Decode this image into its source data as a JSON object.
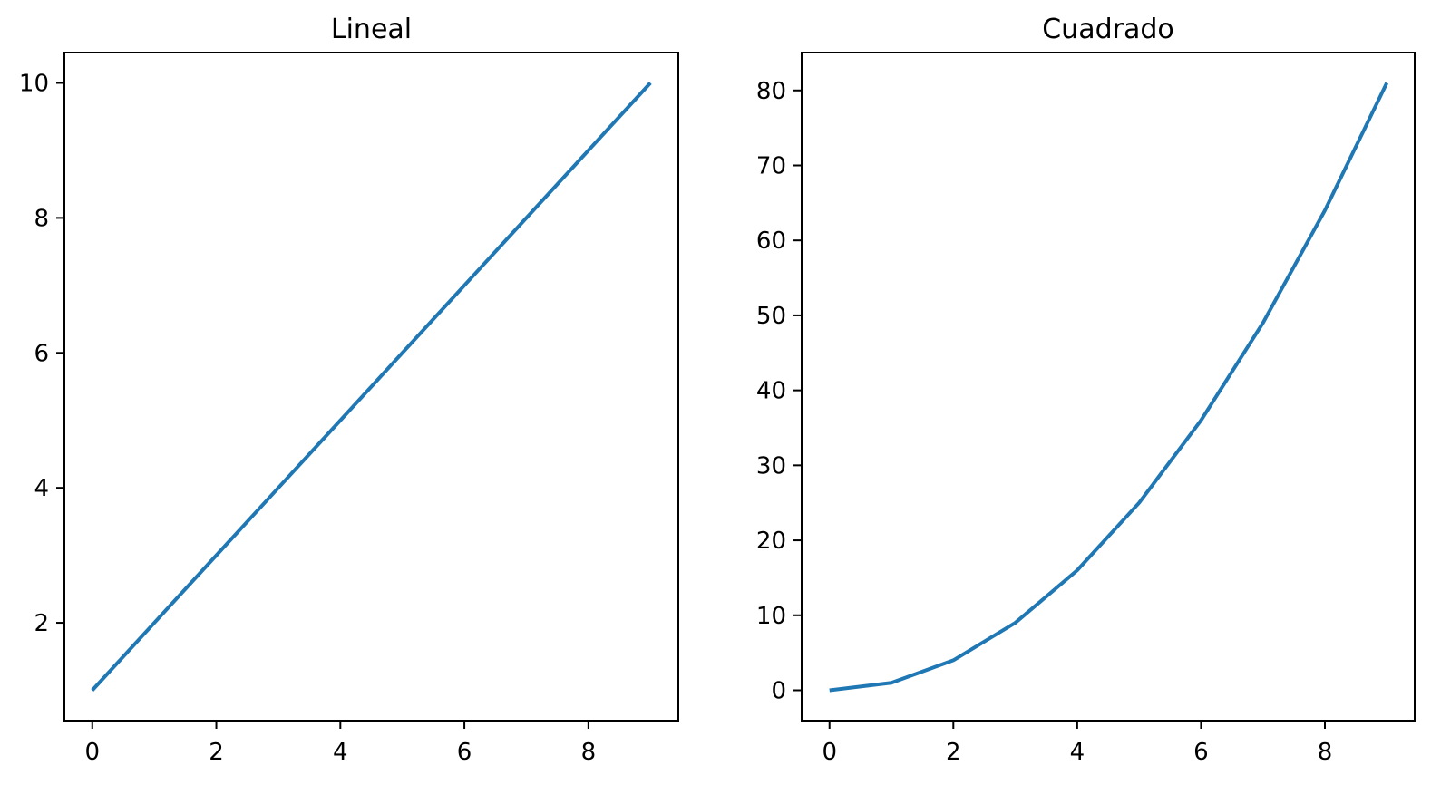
{
  "figure": {
    "background": "#ffffff",
    "axis_color": "#000000",
    "text_color": "#000000"
  },
  "chart_data": [
    {
      "type": "line",
      "title": "Lineal",
      "x": [
        0,
        1,
        2,
        3,
        4,
        5,
        6,
        7,
        8,
        9
      ],
      "y": [
        1,
        2,
        3,
        4,
        5,
        6,
        7,
        8,
        9,
        10
      ],
      "xticks": [
        0,
        2,
        4,
        6,
        8
      ],
      "yticks": [
        2,
        4,
        6,
        8,
        10
      ],
      "xlim": [
        -0.45,
        9.45
      ],
      "ylim": [
        0.55,
        10.45
      ],
      "xlabel": "",
      "ylabel": "",
      "grid": false,
      "legend": null,
      "line_color": "#1f77b4"
    },
    {
      "type": "line",
      "title": "Cuadrado",
      "x": [
        0,
        1,
        2,
        3,
        4,
        5,
        6,
        7,
        8,
        9
      ],
      "y": [
        0,
        1,
        4,
        9,
        16,
        25,
        36,
        49,
        64,
        81
      ],
      "xticks": [
        0,
        2,
        4,
        6,
        8
      ],
      "yticks": [
        0,
        10,
        20,
        30,
        40,
        50,
        60,
        70,
        80
      ],
      "xlim": [
        -0.45,
        9.45
      ],
      "ylim": [
        -4.05,
        85.05
      ],
      "xlabel": "",
      "ylabel": "",
      "grid": false,
      "legend": null,
      "line_color": "#1f77b4"
    }
  ]
}
